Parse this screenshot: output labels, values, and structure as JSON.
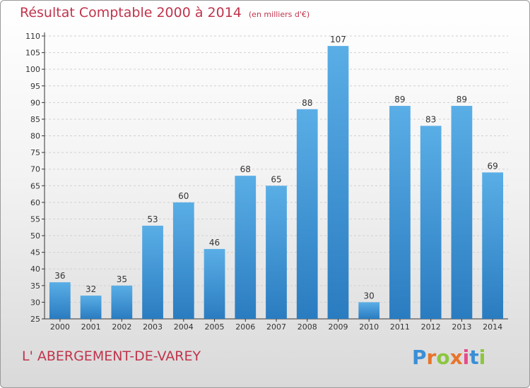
{
  "chart_data": {
    "type": "bar",
    "title": "Résultat Comptable 2000 à 2014",
    "subtitle": "(en milliers d'€)",
    "categories": [
      "2000",
      "2001",
      "2002",
      "2003",
      "2004",
      "2005",
      "2006",
      "2007",
      "2008",
      "2009",
      "2010",
      "2011",
      "2012",
      "2013",
      "2014"
    ],
    "values": [
      36,
      32,
      35,
      53,
      60,
      46,
      68,
      65,
      88,
      107,
      30,
      89,
      83,
      89,
      69
    ],
    "ylim": [
      25,
      110
    ],
    "yticks": [
      25,
      30,
      35,
      40,
      45,
      50,
      55,
      60,
      65,
      70,
      75,
      80,
      85,
      90,
      95,
      100,
      105,
      110
    ],
    "grid": true,
    "bar_color_top": "#5aaee6",
    "bar_color_bottom": "#2a7cc0"
  },
  "place_name": "L' ABERGEMENT-DE-VAREY",
  "logo": {
    "letters": [
      "P",
      "r",
      "o",
      "x",
      "i",
      "t",
      "i"
    ],
    "colors": [
      "#3a8fd6",
      "#e8742b",
      "#8cc63f",
      "#e8742b",
      "#e64b8a",
      "#3a8fd6",
      "#8cc63f"
    ]
  },
  "colors": {
    "title": "#c0344c",
    "grid": "#d0d0d0",
    "axis": "#333333"
  }
}
